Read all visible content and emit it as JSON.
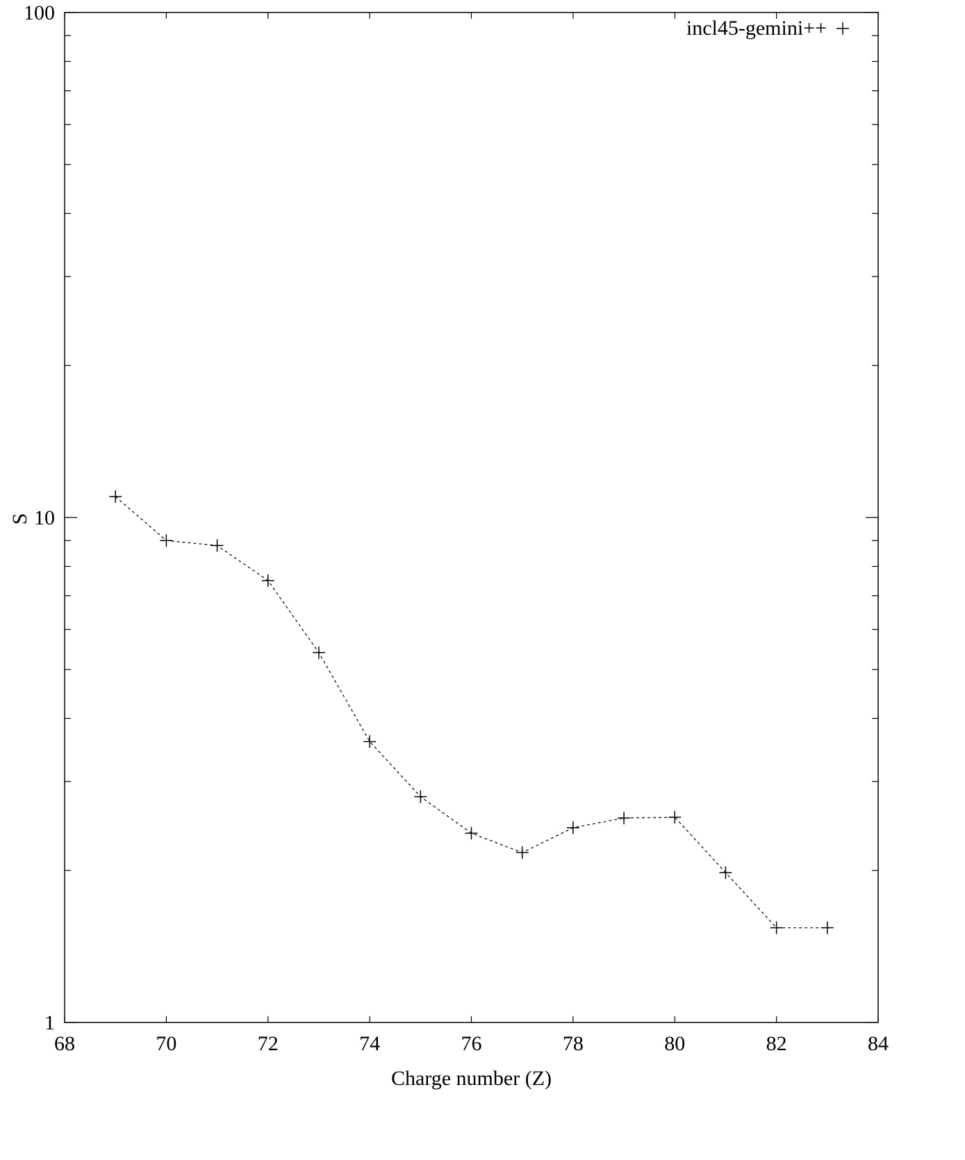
{
  "chart_data": {
    "type": "scatter",
    "xlabel": "Charge number (Z)",
    "ylabel": "S",
    "xlim": [
      68,
      84
    ],
    "ylim": [
      1,
      100
    ],
    "yscale": "log",
    "grid": false,
    "legend_position": "top-right",
    "x_ticks": [
      "68",
      "70",
      "72",
      "74",
      "76",
      "78",
      "80",
      "82",
      "84"
    ],
    "y_ticks": [
      "1",
      "10",
      "100"
    ],
    "series": [
      {
        "name": "incl45-gemini++",
        "marker": "plus",
        "line_style": "dashed",
        "color": "#000000",
        "x": [
          69,
          70,
          71,
          72,
          73,
          74,
          75,
          76,
          77,
          78,
          79,
          80,
          81,
          82,
          83
        ],
        "y": [
          11.0,
          9.0,
          8.8,
          7.5,
          5.4,
          3.6,
          2.8,
          2.37,
          2.17,
          2.43,
          2.54,
          2.55,
          1.98,
          1.54,
          1.54
        ]
      }
    ]
  }
}
